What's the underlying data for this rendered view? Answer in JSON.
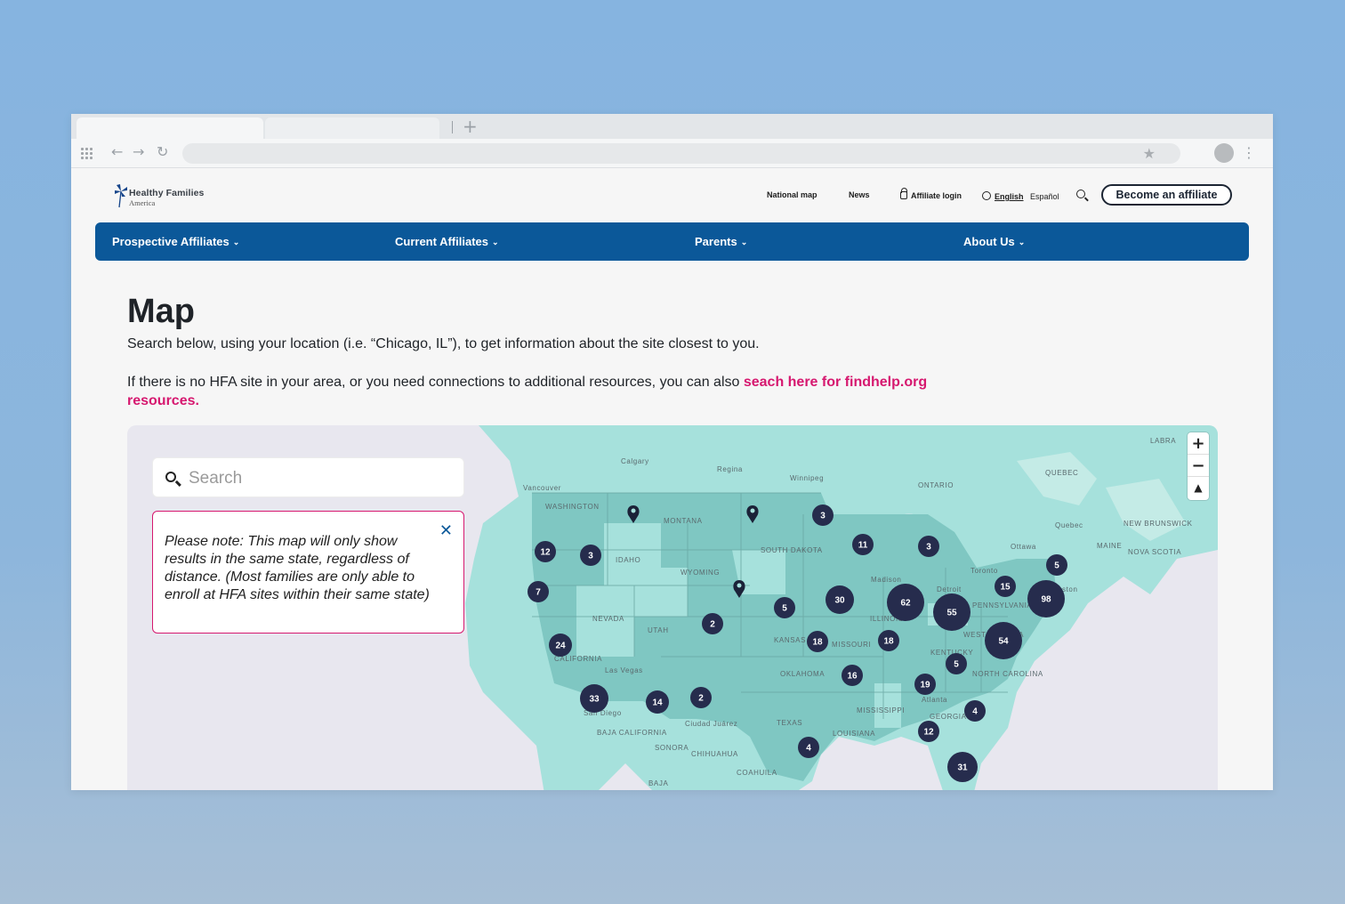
{
  "browser": {
    "star_icon": "star-icon"
  },
  "site": {
    "logo": {
      "title": "Healthy Families",
      "subtitle": "America"
    },
    "util_nav": {
      "national_map": "National map",
      "news": "News",
      "affiliate_login": "Affiliate login",
      "english": "English",
      "espanol": "Español"
    },
    "become_affiliate": "Become an affiliate",
    "main_nav": [
      "Prospective Affiliates",
      "Current Affiliates",
      "Parents",
      "About Us"
    ]
  },
  "page": {
    "title": "Map",
    "intro": "Search below, using your location (i.e. “Chicago, IL”), to get information about the site closest to you.",
    "resources_text": "If there is no HFA site in your area, or you need connections to additional resources, you can also ",
    "resources_link": "seach here for findhelp.org resources."
  },
  "map": {
    "search_placeholder": "Search",
    "notice": "Please note: This map will only show results in the same state, regardless of distance. (Most families are only able to enroll at HFA sites within their same state)",
    "place_labels": [
      "Calgary",
      "Regina",
      "Winnipeg",
      "Vancouver",
      "ONTARIO",
      "QUEBEC",
      "Quebec",
      "NEW BRUNSWICK",
      "NOVA SCOTIA",
      "MAINE",
      "Ottawa",
      "Toronto",
      "Boston",
      "WASHINGTON",
      "MONTANA",
      "IDAHO",
      "WYOMING",
      "SOUTH DAKOTA",
      "NEVADA",
      "UTAH",
      "CALIFORNIA",
      "Las Vegas",
      "San Diego",
      "Ciudad Juárez",
      "KANSAS",
      "MISSOURI",
      "OKLAHOMA",
      "TEXAS",
      "MISSISSIPPI",
      "LOUISIANA",
      "ILLINOIS",
      "Madison",
      "Detroit",
      "KENTUCKY",
      "NORTH CAROLINA",
      "Atlanta",
      "GEORGIA",
      "PENNSYLVANIA",
      "WEST VIRGINIA",
      "BAJA CALIFORNIA",
      "SONORA",
      "CHIHUAHUA",
      "COAHUILA",
      "BAJA",
      "LABRA"
    ],
    "clusters": [
      {
        "count": "12"
      },
      {
        "count": "3"
      },
      {
        "count": "7"
      },
      {
        "count": "24"
      },
      {
        "count": "33"
      },
      {
        "count": "14"
      },
      {
        "count": "2"
      },
      {
        "count": "2"
      },
      {
        "count": "5"
      },
      {
        "count": "3"
      },
      {
        "count": "11"
      },
      {
        "count": "30"
      },
      {
        "count": "18"
      },
      {
        "count": "16"
      },
      {
        "count": "18"
      },
      {
        "count": "62"
      },
      {
        "count": "55"
      },
      {
        "count": "3"
      },
      {
        "count": "15"
      },
      {
        "count": "5"
      },
      {
        "count": "98"
      },
      {
        "count": "54"
      },
      {
        "count": "5"
      },
      {
        "count": "19"
      },
      {
        "count": "4"
      },
      {
        "count": "12"
      },
      {
        "count": "4"
      },
      {
        "count": "31"
      }
    ],
    "zoom_in": "+",
    "zoom_out": "−",
    "compass": "▲"
  }
}
